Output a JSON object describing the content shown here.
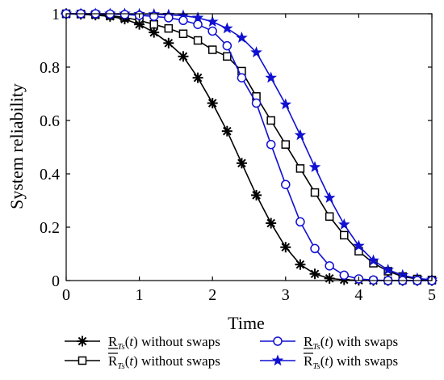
{
  "chart_data": {
    "type": "line",
    "title": "",
    "xlabel": "Time",
    "ylabel": "System reliability",
    "xlim": [
      0,
      5
    ],
    "ylim": [
      0,
      1
    ],
    "xticks": [
      0,
      1,
      2,
      3,
      4,
      5
    ],
    "yticks": [
      0,
      0.2,
      0.4,
      0.6,
      0.8,
      1
    ],
    "grid": false,
    "legend_position": "bottom",
    "x": [
      0,
      0.2,
      0.4,
      0.6,
      0.8,
      1.0,
      1.2,
      1.4,
      1.6,
      1.8,
      2.0,
      2.2,
      2.4,
      2.6,
      2.8,
      3.0,
      3.2,
      3.4,
      3.6,
      3.8,
      4.0,
      4.2,
      4.4,
      4.6,
      4.8,
      5.0
    ],
    "series": [
      {
        "name": "R_Ts(t) without swaps",
        "label": {
          "main": "R",
          "sub": "Ts",
          "arg": "(t)",
          "bar": "under",
          "rest": " without swaps"
        },
        "marker": "asterisk",
        "color": "#000000",
        "values": [
          1.0,
          0.998,
          0.995,
          0.99,
          0.98,
          0.96,
          0.93,
          0.89,
          0.84,
          0.76,
          0.665,
          0.56,
          0.44,
          0.32,
          0.215,
          0.125,
          0.06,
          0.025,
          0.008,
          0.003,
          0.001,
          0.0,
          0.0,
          0.0,
          0.0,
          0.0
        ]
      },
      {
        "name": "R̄_Ts(t) without swaps",
        "label": {
          "main": "R",
          "sub": "Ts",
          "arg": "(t)",
          "bar": "over",
          "rest": " without swaps"
        },
        "marker": "square",
        "color": "#000000",
        "values": [
          1.0,
          0.999,
          0.997,
          0.993,
          0.986,
          0.975,
          0.96,
          0.945,
          0.925,
          0.9,
          0.865,
          0.84,
          0.785,
          0.69,
          0.6,
          0.51,
          0.42,
          0.33,
          0.24,
          0.17,
          0.11,
          0.065,
          0.035,
          0.015,
          0.006,
          0.002
        ]
      },
      {
        "name": "R_Ts(t) with swaps",
        "label": {
          "main": "R",
          "sub": "Ts",
          "arg": "(t)",
          "bar": "under",
          "rest": " with swaps"
        },
        "marker": "circle",
        "color": "#1010d0",
        "values": [
          1.0,
          1.0,
          1.0,
          0.999,
          0.997,
          0.994,
          0.99,
          0.985,
          0.975,
          0.96,
          0.935,
          0.88,
          0.76,
          0.665,
          0.51,
          0.36,
          0.22,
          0.12,
          0.055,
          0.02,
          0.006,
          0.002,
          0.0,
          0.0,
          0.0,
          0.0
        ]
      },
      {
        "name": "R̄_Ts(t) with swaps",
        "label": {
          "main": "R",
          "sub": "Ts",
          "arg": "(t)",
          "bar": "over",
          "rest": " with swaps"
        },
        "marker": "star",
        "color": "#1010d0",
        "values": [
          1.0,
          1.0,
          1.0,
          1.0,
          1.0,
          0.999,
          0.998,
          0.996,
          0.993,
          0.985,
          0.97,
          0.945,
          0.91,
          0.855,
          0.76,
          0.66,
          0.545,
          0.425,
          0.31,
          0.21,
          0.13,
          0.075,
          0.04,
          0.02,
          0.008,
          0.003
        ]
      }
    ]
  }
}
